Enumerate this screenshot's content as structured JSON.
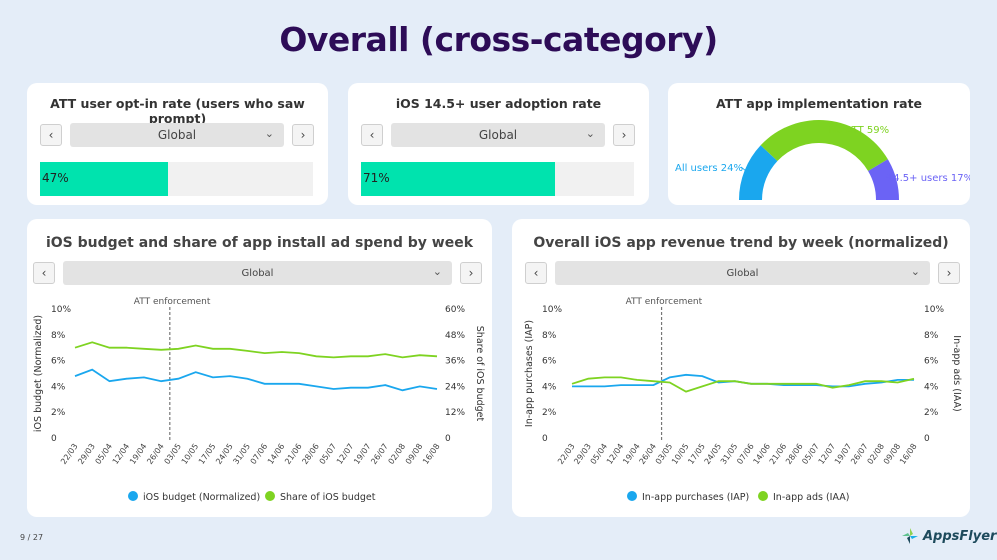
{
  "page": {
    "title": "Overall (cross-category)",
    "page_number": "9 / 27",
    "logo_text": "AppsFlyer"
  },
  "optin_card": {
    "title": "ATT user opt-in rate (users who saw prompt)",
    "selector_value": "Global",
    "rate": 47,
    "rate_label": "47%"
  },
  "adoption_card": {
    "title": "iOS 14.5+ user adoption rate",
    "selector_value": "Global",
    "rate": 71,
    "rate_label": "71%"
  },
  "colors": {
    "bar_fill": "#00e3ae",
    "blue": "#1aa7ee",
    "green": "#7ed321",
    "purple": "#6b63f5",
    "title": "#2d0c57"
  },
  "chart_data": [
    {
      "type": "pie",
      "title": "ATT app implementation rate",
      "labels": [
        "All users 24%",
        "No ATT 59%",
        "14.5+ users 17%"
      ],
      "values": [
        24,
        59,
        17
      ],
      "colors": [
        "#1aa7ee",
        "#7ed321",
        "#6b63f5"
      ]
    },
    {
      "type": "line",
      "title": "iOS budget and share of app install ad spend by week",
      "selector_value": "Global",
      "x": [
        "22/03",
        "29/03",
        "05/04",
        "12/04",
        "19/04",
        "26/04",
        "03/05",
        "10/05",
        "17/05",
        "24/05",
        "31/05",
        "07/06",
        "14/06",
        "21/06",
        "28/06",
        "05/07",
        "12/07",
        "19/07",
        "26/07",
        "02/08",
        "09/08",
        "16/08"
      ],
      "ylabel": "iOS budget (Normalized)",
      "y2label": "Share of iOS budget",
      "ylim": [
        0,
        10
      ],
      "y2lim": [
        0,
        60
      ],
      "yticks": [
        "0",
        "2%",
        "4%",
        "6%",
        "8%",
        "10%"
      ],
      "y2ticks": [
        "0",
        "12%",
        "24%",
        "36%",
        "48%",
        "60%"
      ],
      "annotation": {
        "label": "ATT enforcement",
        "index": 5.5
      },
      "series": [
        {
          "name": "iOS budget (Normalized)",
          "axis": "left",
          "color": "#1aa7ee",
          "values": [
            4.8,
            5.3,
            4.4,
            4.6,
            4.7,
            4.4,
            4.6,
            5.1,
            4.7,
            4.8,
            4.6,
            4.2,
            4.2,
            4.2,
            4.0,
            3.8,
            3.9,
            3.9,
            4.1,
            3.7,
            4.0,
            3.8
          ]
        },
        {
          "name": "Share of iOS budget",
          "axis": "right",
          "color": "#7ed321",
          "values": [
            42,
            44.5,
            42,
            42,
            41.5,
            41,
            41.5,
            43,
            41.5,
            41.5,
            40.5,
            39.5,
            40,
            39.5,
            38,
            37.5,
            38,
            38,
            39,
            37.5,
            38.5,
            38
          ]
        }
      ]
    },
    {
      "type": "line",
      "title": "Overall iOS app revenue trend by week (normalized)",
      "selector_value": "Global",
      "x": [
        "22/03",
        "29/03",
        "05/04",
        "12/04",
        "19/04",
        "26/04",
        "03/05",
        "10/05",
        "17/05",
        "24/05",
        "31/05",
        "07/06",
        "14/06",
        "21/06",
        "28/06",
        "05/07",
        "12/07",
        "19/07",
        "26/07",
        "02/08",
        "09/08",
        "16/08"
      ],
      "ylabel": "In-app purchases (IAP)",
      "y2label": "In-app ads (IAA)",
      "ylim": [
        0,
        10
      ],
      "y2lim": [
        0,
        10
      ],
      "yticks": [
        "0",
        "2%",
        "4%",
        "6%",
        "8%",
        "10%"
      ],
      "y2ticks": [
        "0",
        "2%",
        "4%",
        "6%",
        "8%",
        "10%"
      ],
      "annotation": {
        "label": "ATT enforcement",
        "index": 5.5
      },
      "series": [
        {
          "name": "In-app purchases (IAP)",
          "axis": "left",
          "color": "#1aa7ee",
          "values": [
            4.0,
            4.0,
            4.0,
            4.1,
            4.1,
            4.1,
            4.7,
            4.9,
            4.8,
            4.3,
            4.4,
            4.2,
            4.2,
            4.1,
            4.1,
            4.1,
            4.0,
            4.0,
            4.2,
            4.3,
            4.5,
            4.5
          ]
        },
        {
          "name": "In-app ads (IAA)",
          "axis": "right",
          "color": "#7ed321",
          "values": [
            4.2,
            4.6,
            4.7,
            4.7,
            4.5,
            4.4,
            4.3,
            3.6,
            4.0,
            4.4,
            4.4,
            4.2,
            4.2,
            4.2,
            4.2,
            4.2,
            3.9,
            4.1,
            4.4,
            4.4,
            4.3,
            4.6
          ]
        }
      ]
    }
  ]
}
